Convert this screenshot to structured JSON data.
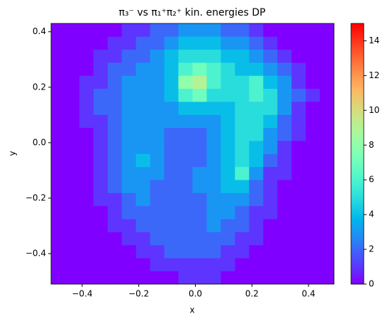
{
  "chart_data": {
    "type": "heatmap",
    "title": "π₃⁻ vs π₁⁺π₂⁺ kin. energies DP",
    "x_label": "x",
    "y_label": "y",
    "xlim": [
      -0.51,
      0.49
    ],
    "ylim": [
      -0.51,
      0.43
    ],
    "xticks": [
      {
        "value": -0.4,
        "label": "−0.4"
      },
      {
        "value": -0.2,
        "label": "−0.2"
      },
      {
        "value": 0,
        "label": "0.0"
      },
      0.2,
      0.4
    ],
    "yticks": [
      {
        "value": -0.4,
        "label": "−0.4"
      },
      {
        "value": -0.2,
        "label": "−0.2"
      },
      {
        "value": 0,
        "label": "0.0"
      },
      0.2,
      0.4
    ],
    "xbins": [
      -0.51,
      -0.46,
      -0.41,
      -0.36,
      -0.31,
      -0.26,
      -0.21,
      -0.16,
      -0.11,
      -0.06,
      -0.01,
      0.04,
      0.09,
      0.14,
      0.19,
      0.24,
      0.29,
      0.34,
      0.39,
      0.44,
      0.49
    ],
    "ybins": [
      -0.51,
      -0.463,
      -0.416,
      -0.369,
      -0.322,
      -0.275,
      -0.228,
      -0.181,
      -0.134,
      -0.087,
      -0.04,
      0.007,
      0.054,
      0.101,
      0.148,
      0.195,
      0.242,
      0.289,
      0.336,
      0.383,
      0.43
    ],
    "values": [
      [
        0,
        0,
        0,
        0,
        0,
        0,
        0,
        0,
        0,
        1,
        1,
        1,
        0,
        0,
        0,
        0,
        0,
        0,
        0,
        0
      ],
      [
        0,
        0,
        0,
        0,
        0,
        0,
        0,
        1,
        1,
        1,
        1,
        1,
        1,
        0,
        0,
        0,
        0,
        0,
        0,
        0
      ],
      [
        0,
        0,
        0,
        0,
        0,
        0,
        1,
        1,
        2,
        2,
        2,
        2,
        1,
        1,
        0,
        0,
        0,
        0,
        0,
        0
      ],
      [
        0,
        0,
        0,
        0,
        0,
        1,
        1,
        2,
        2,
        2,
        2,
        2,
        2,
        1,
        1,
        0,
        0,
        0,
        0,
        0
      ],
      [
        0,
        0,
        0,
        0,
        1,
        1,
        2,
        2,
        2,
        2,
        2,
        3,
        2,
        2,
        1,
        0,
        0,
        0,
        0,
        0
      ],
      [
        0,
        0,
        0,
        0,
        1,
        2,
        2,
        2,
        2,
        2,
        2,
        3,
        3,
        2,
        1,
        1,
        0,
        0,
        0,
        0
      ],
      [
        0,
        0,
        0,
        1,
        1,
        2,
        3,
        2,
        2,
        2,
        2,
        3,
        3,
        3,
        2,
        1,
        0,
        0,
        0,
        0
      ],
      [
        0,
        0,
        0,
        1,
        2,
        3,
        3,
        2,
        2,
        2,
        3,
        3,
        4,
        4,
        2,
        1,
        0,
        0,
        0,
        0
      ],
      [
        0,
        0,
        0,
        1,
        2,
        3,
        3,
        3,
        2,
        2,
        3,
        3,
        4,
        6,
        3,
        1,
        1,
        0,
        0,
        0
      ],
      [
        0,
        0,
        0,
        1,
        2,
        3,
        4,
        3,
        2,
        2,
        2,
        3,
        4,
        5,
        4,
        2,
        1,
        0,
        0,
        0
      ],
      [
        0,
        0,
        0,
        1,
        2,
        3,
        3,
        3,
        2,
        2,
        2,
        3,
        4,
        5,
        4,
        3,
        1,
        0,
        0,
        0
      ],
      [
        0,
        0,
        0,
        1,
        2,
        3,
        3,
        3,
        2,
        2,
        2,
        3,
        4,
        5,
        5,
        3,
        2,
        1,
        0,
        0
      ],
      [
        0,
        0,
        1,
        1,
        2,
        3,
        3,
        3,
        3,
        3,
        3,
        3,
        4,
        5,
        5,
        4,
        2,
        1,
        0,
        0
      ],
      [
        0,
        0,
        1,
        2,
        2,
        3,
        3,
        3,
        3,
        4,
        4,
        4,
        4,
        5,
        5,
        5,
        3,
        1,
        0,
        0
      ],
      [
        0,
        0,
        1,
        2,
        2,
        3,
        3,
        3,
        4,
        6,
        7,
        5,
        5,
        5,
        6,
        5,
        3,
        2,
        1,
        0
      ],
      [
        0,
        0,
        1,
        1,
        2,
        3,
        3,
        3,
        4,
        8,
        9,
        6,
        5,
        5,
        6,
        4,
        3,
        1,
        0,
        0
      ],
      [
        0,
        0,
        0,
        1,
        2,
        2,
        3,
        3,
        4,
        6,
        7,
        6,
        5,
        4,
        4,
        3,
        2,
        1,
        0,
        0
      ],
      [
        0,
        0,
        0,
        1,
        1,
        2,
        2,
        3,
        4,
        5,
        5,
        5,
        4,
        4,
        3,
        2,
        1,
        0,
        0,
        0
      ],
      [
        0,
        0,
        0,
        0,
        1,
        1,
        2,
        2,
        3,
        4,
        4,
        4,
        3,
        3,
        2,
        1,
        0,
        0,
        0,
        0
      ],
      [
        0,
        0,
        0,
        0,
        0,
        1,
        1,
        2,
        2,
        3,
        3,
        3,
        2,
        2,
        1,
        0,
        0,
        0,
        0,
        0
      ]
    ],
    "colormap": "rainbow",
    "clim": [
      0,
      15
    ],
    "cticks": [
      0,
      2,
      4,
      6,
      8,
      10,
      12,
      14
    ]
  }
}
